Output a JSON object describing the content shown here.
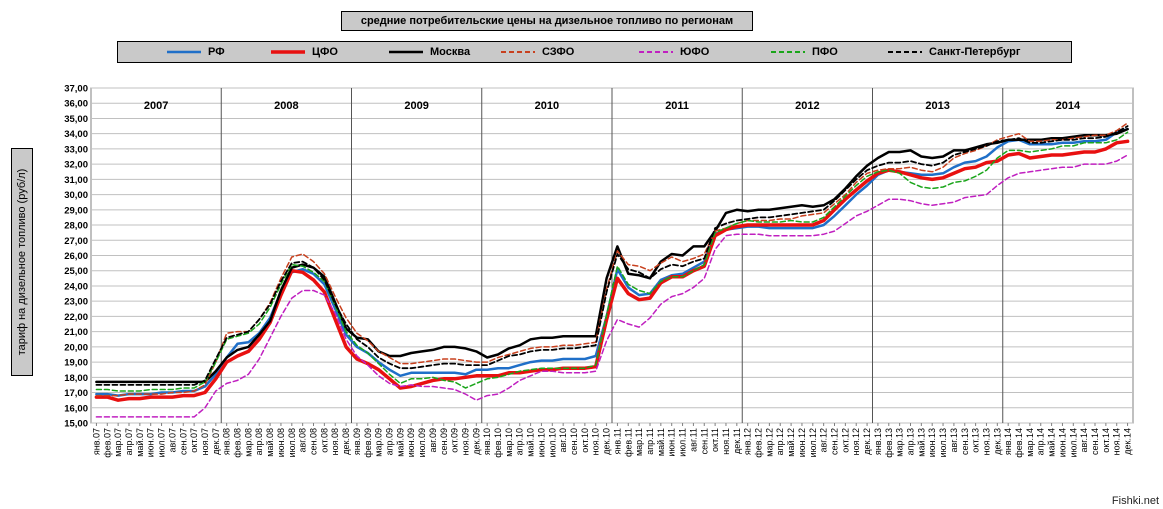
{
  "chart_data": {
    "type": "line",
    "title": "средние потребительские цены на дизельное топливо по регионам",
    "ylabel": "тариф на дизельное топливо (руб/л)",
    "ylim": [
      15,
      37
    ],
    "ytick_step": 1,
    "ytick_labels": [
      "15,00",
      "16,00",
      "17,00",
      "18,00",
      "19,00",
      "20,00",
      "21,00",
      "22,00",
      "23,00",
      "24,00",
      "25,00",
      "26,00",
      "27,00",
      "28,00",
      "29,00",
      "30,00",
      "31,00",
      "32,00",
      "33,00",
      "34,00",
      "35,00",
      "36,00",
      "37,00"
    ],
    "years": [
      "2007",
      "2008",
      "2009",
      "2010",
      "2011",
      "2012",
      "2013",
      "2014"
    ],
    "categories": [
      "янв.07",
      "фев.07",
      "мар.07",
      "апр.07",
      "май.07",
      "июн.07",
      "июл.07",
      "авг.07",
      "сен.07",
      "окт.07",
      "ноя.07",
      "дек.07",
      "янв.08",
      "фев.08",
      "мар.08",
      "апр.08",
      "май.08",
      "июн.08",
      "июл.08",
      "авг.08",
      "сен.08",
      "окт.08",
      "ноя.08",
      "дек.08",
      "янв.09",
      "фев.09",
      "мар.09",
      "апр.09",
      "май.09",
      "июн.09",
      "июл.09",
      "авг.09",
      "сен.09",
      "окт.09",
      "ноя.09",
      "дек.09",
      "янв.10",
      "фев.10",
      "мар.10",
      "апр.10",
      "май.10",
      "июн.10",
      "июл.10",
      "авг.10",
      "сен.10",
      "окт.10",
      "ноя.10",
      "дек.10",
      "янв.11",
      "фев.11",
      "мар.11",
      "апр.11",
      "май.11",
      "июн.11",
      "июл.11",
      "авг.11",
      "сен.11",
      "окт.11",
      "ноя.11",
      "дек.11",
      "янв.12",
      "фев.12",
      "мар.12",
      "апр.12",
      "май.12",
      "июн.12",
      "июл.12",
      "авг.12",
      "сен.12",
      "окт.12",
      "ноя.12",
      "дек.12",
      "янв.13",
      "фев.13",
      "мар.13",
      "апр.13",
      "май.13",
      "июн.13",
      "июл.13",
      "авг.13",
      "сен.13",
      "окт.13",
      "ноя.13",
      "дек.13",
      "янв.14",
      "фев.14",
      "мар.14",
      "апр.14",
      "май.14",
      "июн.14",
      "июл.14",
      "авг.14",
      "сен.14",
      "окт.14",
      "ноя.14",
      "дек.14"
    ],
    "series": [
      {
        "name": "РФ",
        "color": "#1f6fc8",
        "style": "solid",
        "width": 2.5,
        "values": [
          16.9,
          16.9,
          16.8,
          16.9,
          16.9,
          16.9,
          17.0,
          17.0,
          17.1,
          17.1,
          17.4,
          18.2,
          19.3,
          20.2,
          20.3,
          20.9,
          21.9,
          23.6,
          24.9,
          25.1,
          24.8,
          24.1,
          22.5,
          20.8,
          20.0,
          19.6,
          19.0,
          18.5,
          18.1,
          18.3,
          18.3,
          18.3,
          18.3,
          18.3,
          18.2,
          18.5,
          18.5,
          18.6,
          18.6,
          18.8,
          19.0,
          19.1,
          19.1,
          19.2,
          19.2,
          19.2,
          19.4,
          22.0,
          25.1,
          23.9,
          23.4,
          23.5,
          24.4,
          24.7,
          24.8,
          25.2,
          25.6,
          27.4,
          27.7,
          27.8,
          27.9,
          27.9,
          27.8,
          27.8,
          27.8,
          27.8,
          27.8,
          28.0,
          28.6,
          29.3,
          30.0,
          30.6,
          31.3,
          31.6,
          31.5,
          31.4,
          31.3,
          31.3,
          31.4,
          31.8,
          32.1,
          32.2,
          32.5,
          33.1,
          33.5,
          33.6,
          33.3,
          33.3,
          33.3,
          33.4,
          33.4,
          33.5,
          33.5,
          33.6,
          34.1,
          34.3
        ]
      },
      {
        "name": "ЦФО",
        "color": "#e81010",
        "style": "solid",
        "width": 3.5,
        "values": [
          16.7,
          16.7,
          16.5,
          16.6,
          16.6,
          16.7,
          16.7,
          16.7,
          16.8,
          16.8,
          17.0,
          17.9,
          19.0,
          19.4,
          19.7,
          20.5,
          21.6,
          23.4,
          25.0,
          24.9,
          24.4,
          23.6,
          21.8,
          20.0,
          19.2,
          18.9,
          18.5,
          17.9,
          17.3,
          17.4,
          17.6,
          17.8,
          17.9,
          17.9,
          18.0,
          18.1,
          18.1,
          18.1,
          18.3,
          18.3,
          18.4,
          18.5,
          18.5,
          18.6,
          18.6,
          18.6,
          18.7,
          21.8,
          24.5,
          23.5,
          23.1,
          23.2,
          24.2,
          24.6,
          24.6,
          25.0,
          25.3,
          27.3,
          27.7,
          27.9,
          28.0,
          28.0,
          28.0,
          28.0,
          28.0,
          28.0,
          28.0,
          28.3,
          29.0,
          29.7,
          30.3,
          30.9,
          31.4,
          31.6,
          31.5,
          31.3,
          31.1,
          31.0,
          31.1,
          31.4,
          31.7,
          31.8,
          32.1,
          32.2,
          32.6,
          32.7,
          32.4,
          32.5,
          32.6,
          32.6,
          32.7,
          32.8,
          32.8,
          33.0,
          33.4,
          33.5
        ]
      },
      {
        "name": "Москва",
        "color": "#000000",
        "style": "solid",
        "width": 2.5,
        "values": [
          17.7,
          17.7,
          17.7,
          17.7,
          17.7,
          17.7,
          17.7,
          17.7,
          17.7,
          17.7,
          17.7,
          18.4,
          19.3,
          19.8,
          20.0,
          20.8,
          21.7,
          23.7,
          25.2,
          25.4,
          25.2,
          24.6,
          22.9,
          21.2,
          20.6,
          20.5,
          19.7,
          19.4,
          19.4,
          19.6,
          19.7,
          19.8,
          20.0,
          20.0,
          19.9,
          19.7,
          19.3,
          19.5,
          19.9,
          20.1,
          20.5,
          20.6,
          20.6,
          20.7,
          20.7,
          20.7,
          20.7,
          24.5,
          26.6,
          24.8,
          24.7,
          24.5,
          25.6,
          26.1,
          26.0,
          26.6,
          26.6,
          27.6,
          28.8,
          29.0,
          28.9,
          29.0,
          29.0,
          29.1,
          29.2,
          29.3,
          29.2,
          29.3,
          29.7,
          30.4,
          31.2,
          31.9,
          32.4,
          32.8,
          32.8,
          32.9,
          32.5,
          32.4,
          32.5,
          32.9,
          32.9,
          33.1,
          33.3,
          33.4,
          33.6,
          33.6,
          33.6,
          33.6,
          33.7,
          33.7,
          33.8,
          33.9,
          33.9,
          33.9,
          34.0,
          34.3
        ]
      },
      {
        "name": "СЗФО",
        "color": "#c8401e",
        "style": "dash",
        "width": 1.5,
        "values": [
          16.8,
          16.8,
          16.8,
          16.9,
          16.9,
          16.9,
          16.9,
          17.0,
          17.0,
          17.1,
          17.5,
          19.0,
          20.9,
          21.0,
          21.0,
          21.8,
          22.9,
          24.5,
          25.9,
          26.1,
          25.6,
          24.8,
          23.3,
          21.9,
          20.9,
          20.4,
          19.7,
          19.3,
          18.9,
          18.9,
          19.0,
          19.1,
          19.2,
          19.2,
          19.1,
          19.0,
          19.0,
          19.3,
          19.5,
          19.7,
          19.9,
          20.0,
          20.0,
          20.1,
          20.1,
          20.2,
          20.3,
          23.8,
          26.3,
          25.4,
          25.3,
          25.0,
          25.5,
          25.9,
          25.6,
          25.8,
          26.1,
          27.6,
          27.8,
          28.1,
          28.3,
          28.3,
          28.3,
          28.4,
          28.4,
          28.6,
          28.7,
          28.8,
          29.4,
          30.0,
          30.8,
          31.4,
          31.6,
          31.7,
          31.7,
          31.8,
          31.6,
          31.5,
          31.8,
          32.4,
          32.7,
          32.9,
          33.2,
          33.6,
          33.8,
          34.0,
          33.5,
          33.5,
          33.6,
          33.6,
          33.7,
          33.8,
          33.9,
          33.9,
          34.2,
          34.7
        ]
      },
      {
        "name": "ЮФО",
        "color": "#c020c0",
        "style": "dash",
        "width": 1.5,
        "values": [
          15.4,
          15.4,
          15.4,
          15.4,
          15.4,
          15.4,
          15.4,
          15.4,
          15.4,
          15.4,
          16.0,
          17.1,
          17.6,
          17.8,
          18.2,
          19.2,
          20.6,
          22.0,
          23.2,
          23.7,
          23.7,
          23.4,
          22.2,
          20.5,
          19.4,
          18.8,
          18.1,
          17.6,
          17.4,
          17.5,
          17.4,
          17.4,
          17.3,
          17.2,
          16.9,
          16.5,
          16.8,
          16.9,
          17.3,
          17.8,
          18.1,
          18.4,
          18.4,
          18.3,
          18.3,
          18.3,
          18.4,
          20.4,
          21.8,
          21.5,
          21.3,
          21.9,
          22.8,
          23.3,
          23.5,
          23.9,
          24.5,
          26.4,
          27.3,
          27.4,
          27.4,
          27.4,
          27.3,
          27.3,
          27.3,
          27.3,
          27.3,
          27.4,
          27.6,
          28.1,
          28.6,
          28.9,
          29.3,
          29.7,
          29.7,
          29.6,
          29.4,
          29.3,
          29.4,
          29.5,
          29.8,
          29.9,
          30.0,
          30.6,
          31.1,
          31.4,
          31.5,
          31.6,
          31.7,
          31.8,
          31.8,
          32.0,
          32.0,
          32.0,
          32.2,
          32.6
        ]
      },
      {
        "name": "ПФО",
        "color": "#1aa51a",
        "style": "dash",
        "width": 1.5,
        "values": [
          17.2,
          17.2,
          17.1,
          17.1,
          17.1,
          17.2,
          17.2,
          17.2,
          17.3,
          17.3,
          17.7,
          19.0,
          20.5,
          20.7,
          20.9,
          21.5,
          22.6,
          24.1,
          25.4,
          25.3,
          24.9,
          24.3,
          22.7,
          21.0,
          20.1,
          19.6,
          18.9,
          18.2,
          17.6,
          17.9,
          17.9,
          18.0,
          17.8,
          17.7,
          17.3,
          17.6,
          17.9,
          18.0,
          18.2,
          18.4,
          18.5,
          18.6,
          18.6,
          18.6,
          18.6,
          18.6,
          18.8,
          22.1,
          25.3,
          24.1,
          23.7,
          23.5,
          24.3,
          24.6,
          24.6,
          25.0,
          25.4,
          27.5,
          27.8,
          28.1,
          28.3,
          28.2,
          28.2,
          28.2,
          28.3,
          28.2,
          28.2,
          28.5,
          29.2,
          29.9,
          30.6,
          31.2,
          31.5,
          31.6,
          31.4,
          30.8,
          30.5,
          30.4,
          30.5,
          30.8,
          30.9,
          31.2,
          31.6,
          32.4,
          32.9,
          32.9,
          32.8,
          32.9,
          33.0,
          33.2,
          33.2,
          33.4,
          33.4,
          33.4,
          33.6,
          34.1
        ]
      },
      {
        "name": "Санкт-Петербург",
        "color": "#000000",
        "style": "dash",
        "width": 1.8,
        "values": [
          17.5,
          17.5,
          17.5,
          17.5,
          17.5,
          17.5,
          17.5,
          17.5,
          17.5,
          17.5,
          17.8,
          19.2,
          20.6,
          20.8,
          21.0,
          21.8,
          22.8,
          24.3,
          25.5,
          25.6,
          25.2,
          24.4,
          22.8,
          21.5,
          20.5,
          20.0,
          19.3,
          18.9,
          18.6,
          18.6,
          18.7,
          18.8,
          18.9,
          18.9,
          18.8,
          18.8,
          18.8,
          19.1,
          19.4,
          19.5,
          19.7,
          19.8,
          19.8,
          19.9,
          19.9,
          20.0,
          20.1,
          23.6,
          26.1,
          25.1,
          24.9,
          24.5,
          25.1,
          25.4,
          25.3,
          25.6,
          25.8,
          27.8,
          28.1,
          28.3,
          28.4,
          28.5,
          28.5,
          28.6,
          28.7,
          28.8,
          28.9,
          29.0,
          29.6,
          30.3,
          31.0,
          31.6,
          31.9,
          32.1,
          32.1,
          32.2,
          32.0,
          31.9,
          32.1,
          32.6,
          32.8,
          33.0,
          33.2,
          33.5,
          33.6,
          33.7,
          33.4,
          33.4,
          33.5,
          33.6,
          33.6,
          33.7,
          33.7,
          33.8,
          34.1,
          34.5
        ]
      }
    ]
  },
  "watermark": "Fishki.net"
}
